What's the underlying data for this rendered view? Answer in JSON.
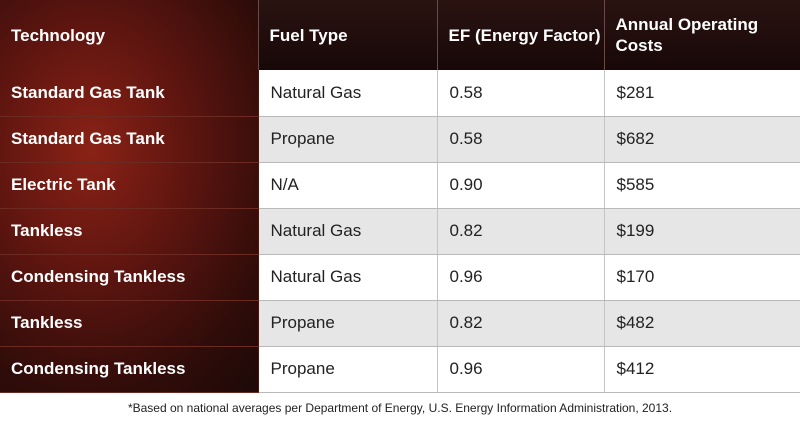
{
  "table": {
    "headers": [
      "Technology",
      "Fuel Type",
      "EF (Energy Factor)",
      "Annual Operating Costs"
    ],
    "rows": [
      [
        "Standard Gas Tank",
        "Natural Gas",
        "0.58",
        "$281"
      ],
      [
        "Standard Gas Tank",
        "Propane",
        "0.58",
        "$682"
      ],
      [
        "Electric Tank",
        "N/A",
        "0.90",
        "$585"
      ],
      [
        "Tankless",
        "Natural Gas",
        "0.82",
        "$199"
      ],
      [
        "Condensing Tankless",
        "Natural Gas",
        "0.96",
        "$170"
      ],
      [
        "Tankless",
        "Propane",
        "0.82",
        "$482"
      ],
      [
        "Condensing Tankless",
        "Propane",
        "0.96",
        "$412"
      ]
    ]
  },
  "footnote": "*Based on national averages per Department of Energy, U.S. Energy Information Administration, 2013.",
  "colors": {
    "header_bg": "#1c0b0a",
    "tech_column_accent": "#8a2216",
    "row_alt": "#e6e6e6"
  }
}
